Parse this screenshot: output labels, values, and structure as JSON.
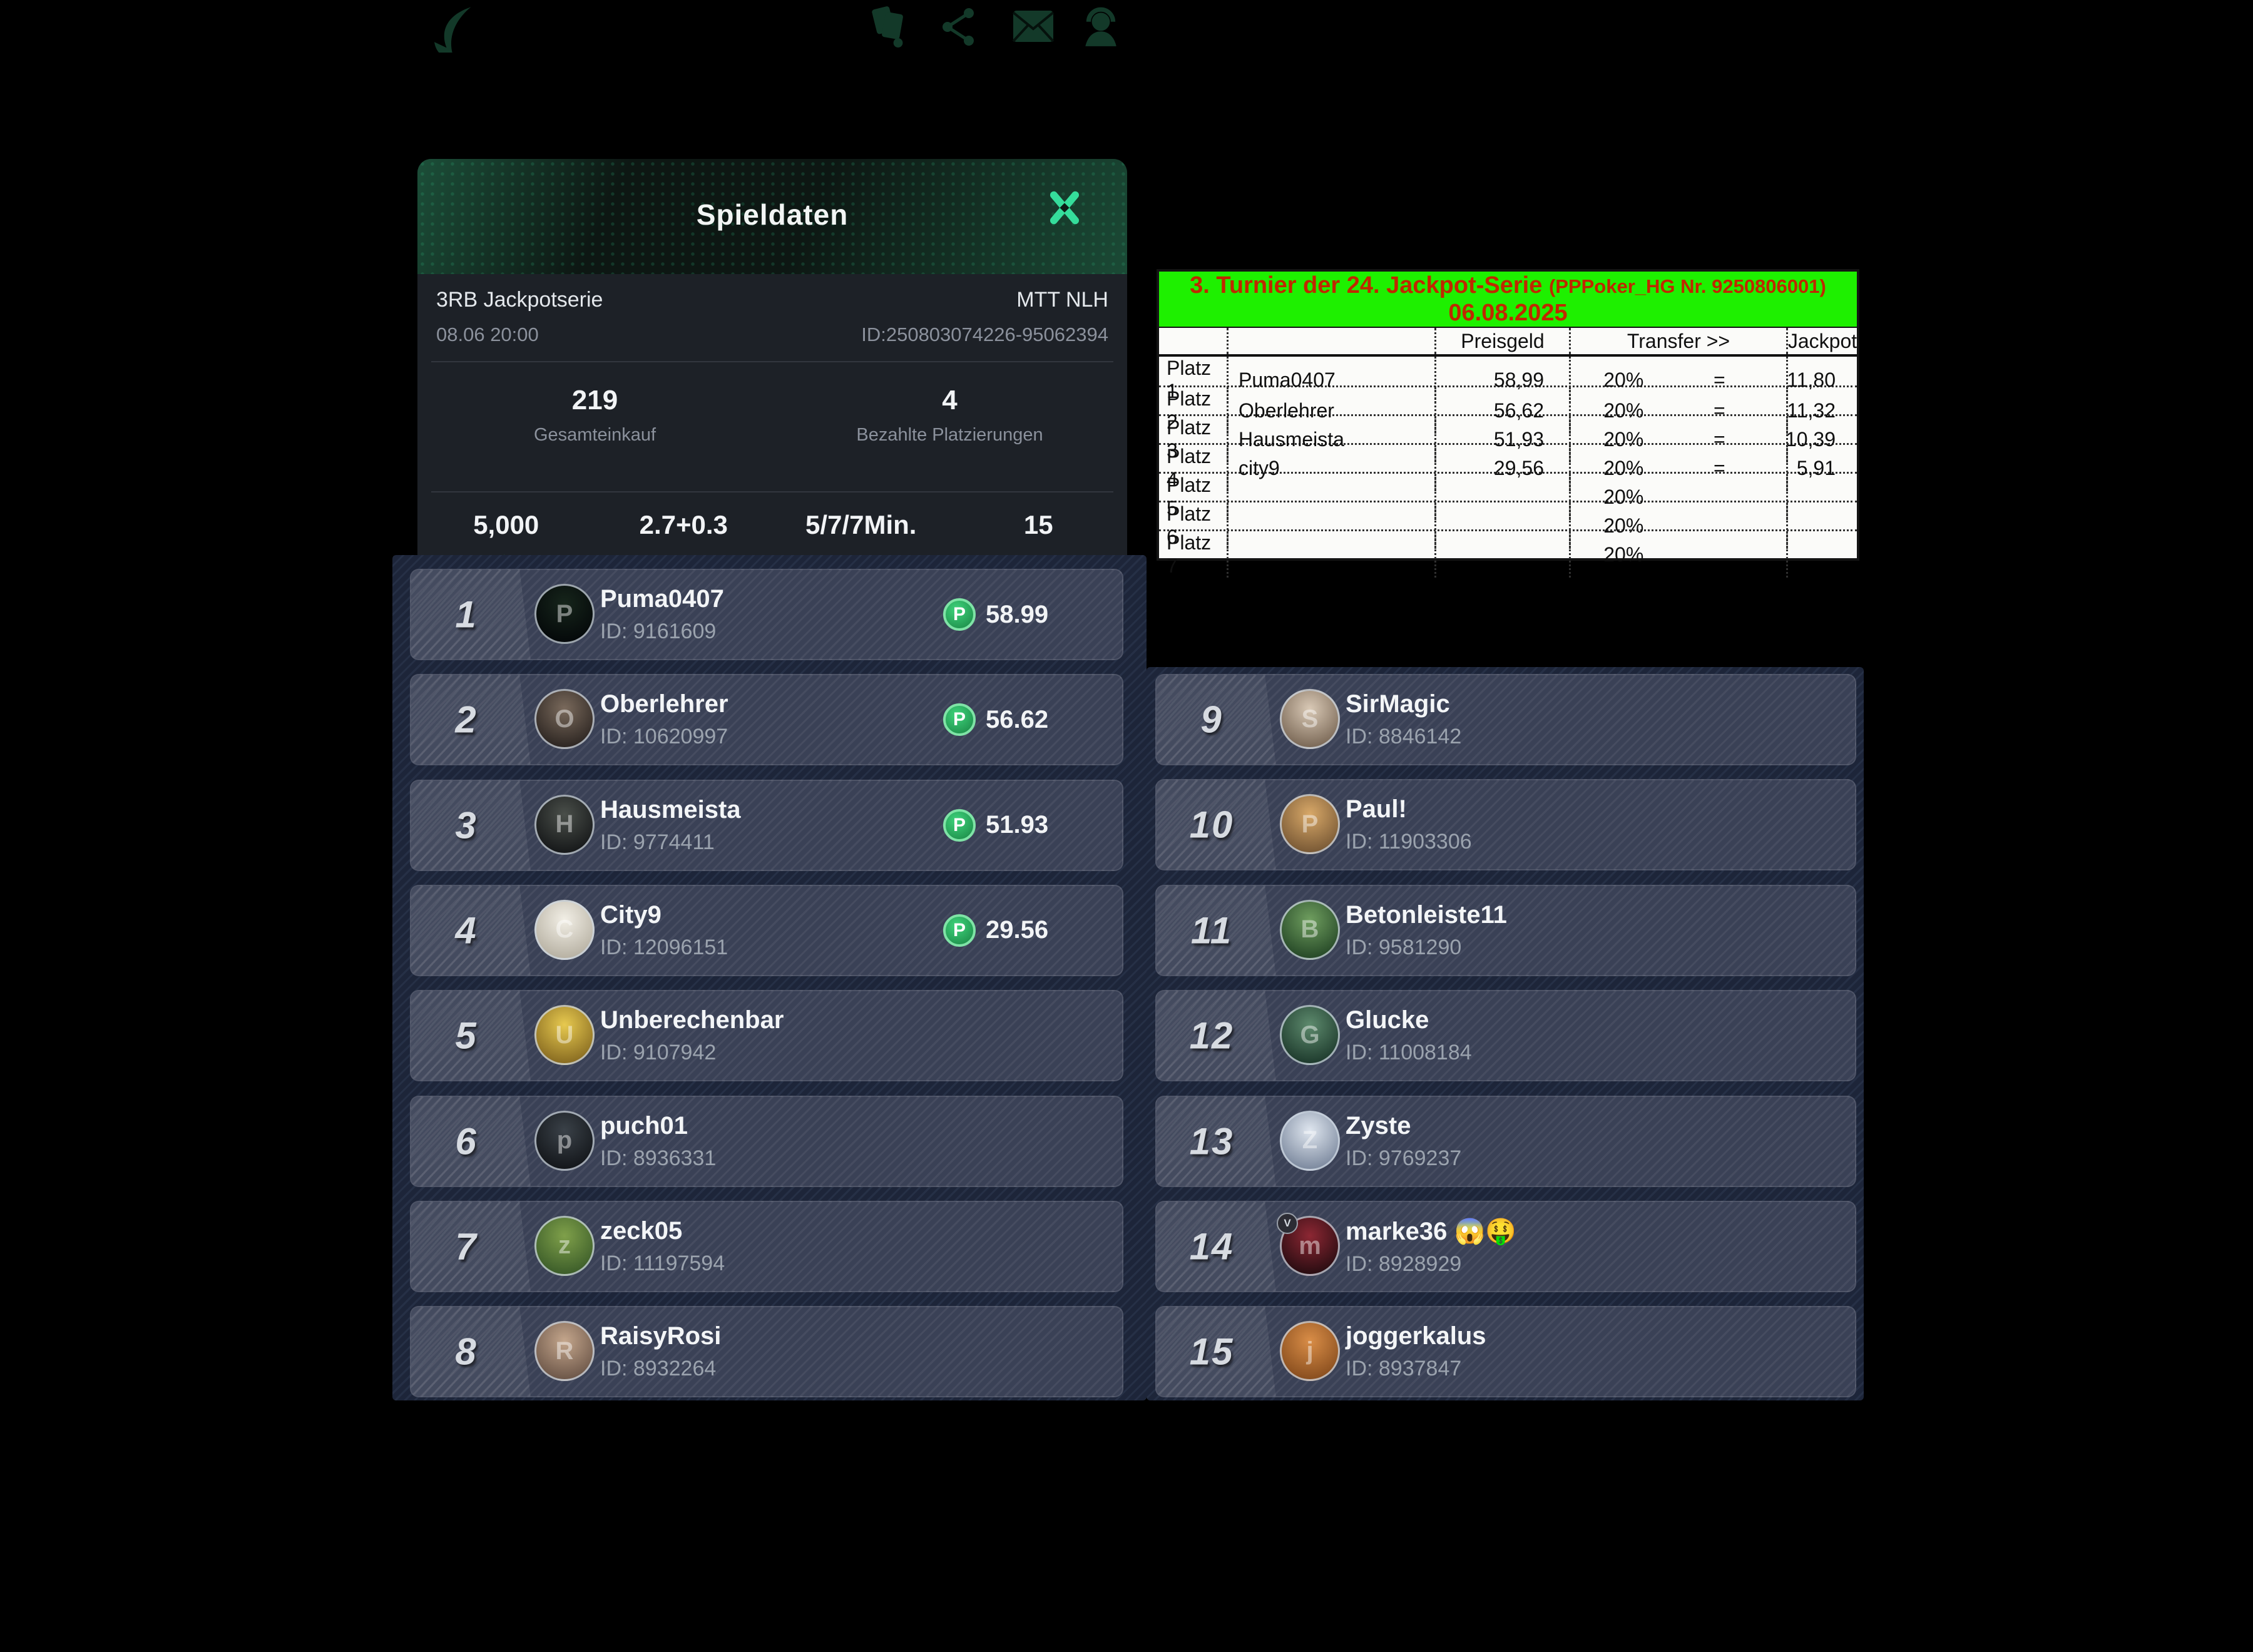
{
  "topbar": {
    "icons": [
      "back-icon",
      "cards-icon",
      "share-icon",
      "mail-icon",
      "support-icon"
    ]
  },
  "dialog": {
    "title": "Spieldaten",
    "series": "3RB Jackpotserie",
    "datetime": "08.06 20:00",
    "game_type": "MTT NLH",
    "game_id": "ID:250803074226-95062394",
    "buyin_total": {
      "value": "219",
      "label": "Gesamteinkauf"
    },
    "paid_places": {
      "value": "4",
      "label": "Bezahlte Platzierungen"
    },
    "stats": [
      {
        "value": "5,000",
        "icon": "chip-icon"
      },
      {
        "value": "2.7+0.3",
        "icon": "dollar-icon"
      },
      {
        "value": "5/7/7Min.",
        "icon": "clock-icon"
      },
      {
        "value": "15",
        "icon": "players-icon"
      }
    ]
  },
  "payout_table": {
    "title": "3. Turnier der 24. Jackpot-Serie",
    "title_note": "(PPPoker_HG Nr. 9250806001)",
    "date": "06.08.2025",
    "col_headers": [
      "Preisgeld",
      "Transfer >>",
      "Jackpot"
    ],
    "rows": [
      {
        "platz": "Platz 1",
        "name": "Puma0407",
        "preisgeld": "58,99",
        "transfer": "20%",
        "eq": "=",
        "jackpot": "11,80"
      },
      {
        "platz": "Platz 2",
        "name": "Oberlehrer",
        "preisgeld": "56,62",
        "transfer": "20%",
        "eq": "=",
        "jackpot": "11,32"
      },
      {
        "platz": "Platz 3",
        "name": "Hausmeista",
        "preisgeld": "51,93",
        "transfer": "20%",
        "eq": "=",
        "jackpot": "10,39"
      },
      {
        "platz": "Platz 4",
        "name": "city9",
        "preisgeld": "29,56",
        "transfer": "20%",
        "eq": "=",
        "jackpot": "5,91"
      },
      {
        "platz": "Platz 5",
        "name": "",
        "preisgeld": "",
        "transfer": "20%",
        "eq": "",
        "jackpot": ""
      },
      {
        "platz": "Platz 6",
        "name": "",
        "preisgeld": "",
        "transfer": "20%",
        "eq": "",
        "jackpot": ""
      },
      {
        "platz": "Platz 7",
        "name": "",
        "preisgeld": "",
        "transfer": "20%",
        "eq": "",
        "jackpot": ""
      }
    ]
  },
  "leaderboard": {
    "left": [
      {
        "rank": "1",
        "tier": "gold",
        "name": "Puma0407",
        "id": "ID: 9161609",
        "amount": "58.99",
        "avatar_letter": "P",
        "avatar_top": "#16251b",
        "avatar_bottom": "#05090a",
        "badge": ""
      },
      {
        "rank": "2",
        "tier": "silver",
        "name": "Oberlehrer",
        "id": "ID: 10620997",
        "amount": "56.62",
        "avatar_letter": "O",
        "avatar_top": "#7a6a5c",
        "avatar_bottom": "#2e2723",
        "badge": ""
      },
      {
        "rank": "3",
        "tier": "bronze",
        "name": "Hausmeista",
        "id": "ID: 9774411",
        "amount": "51.93",
        "avatar_letter": "H",
        "avatar_top": "#4a4f4a",
        "avatar_bottom": "#17191a",
        "badge": ""
      },
      {
        "rank": "4",
        "tier": "plain",
        "name": "City9",
        "id": "ID: 12096151",
        "amount": "29.56",
        "avatar_letter": "C",
        "avatar_top": "#f2efe6",
        "avatar_bottom": "#b8b2a4",
        "badge": ""
      },
      {
        "rank": "5",
        "tier": "plain",
        "name": "Unberechenbar",
        "id": "ID: 9107942",
        "amount": "",
        "avatar_letter": "U",
        "avatar_top": "#e7c94f",
        "avatar_bottom": "#8a6d22",
        "badge": ""
      },
      {
        "rank": "6",
        "tier": "plain",
        "name": "puch01",
        "id": "ID: 8936331",
        "amount": "",
        "avatar_letter": "p",
        "avatar_top": "#3a4148",
        "avatar_bottom": "#14171b",
        "badge": ""
      },
      {
        "rank": "7",
        "tier": "plain",
        "name": "zeck05",
        "id": "ID: 11197594",
        "amount": "",
        "avatar_letter": "z",
        "avatar_top": "#7fa04a",
        "avatar_bottom": "#3d5e2a",
        "badge": ""
      },
      {
        "rank": "8",
        "tier": "plain",
        "name": "RaisyRosi",
        "id": "ID: 8932264",
        "amount": "",
        "avatar_letter": "R",
        "avatar_top": "#c4a68c",
        "avatar_bottom": "#6e584a",
        "badge": ""
      }
    ],
    "right": [
      {
        "rank": "9",
        "tier": "plain",
        "name": "SirMagic",
        "id": "ID: 8846142",
        "amount": "",
        "avatar_letter": "S",
        "avatar_top": "#d9c9b6",
        "avatar_bottom": "#7c6a58",
        "badge": ""
      },
      {
        "rank": "10",
        "tier": "plain",
        "name": "Paul!",
        "id": "ID: 11903306",
        "amount": "",
        "avatar_letter": "P",
        "avatar_top": "#d8a868",
        "avatar_bottom": "#7a5a36",
        "badge": ""
      },
      {
        "rank": "11",
        "tier": "plain",
        "name": "Betonleiste11",
        "id": "ID: 9581290",
        "amount": "",
        "avatar_letter": "B",
        "avatar_top": "#6f9e5f",
        "avatar_bottom": "#274a28",
        "badge": ""
      },
      {
        "rank": "12",
        "tier": "plain",
        "name": "Glucke",
        "id": "ID: 11008184",
        "amount": "",
        "avatar_letter": "G",
        "avatar_top": "#5d8a6d",
        "avatar_bottom": "#1f3c2e",
        "badge": ""
      },
      {
        "rank": "13",
        "tier": "plain",
        "name": "Zyste",
        "id": "ID: 9769237",
        "amount": "",
        "avatar_letter": "Z",
        "avatar_top": "#dfe6ef",
        "avatar_bottom": "#7e8ba0",
        "badge": ""
      },
      {
        "rank": "14",
        "tier": "plain",
        "name": "marke36 😱🤑",
        "id": "ID: 8928929",
        "amount": "",
        "avatar_letter": "m",
        "avatar_top": "#8c2733",
        "avatar_bottom": "#2a0d12",
        "badge": "V"
      },
      {
        "rank": "15",
        "tier": "plain",
        "name": "joggerkalus",
        "id": "ID: 8937847",
        "amount": "",
        "avatar_letter": "j",
        "avatar_top": "#d98d47",
        "avatar_bottom": "#8a4f1f",
        "badge": ""
      }
    ]
  },
  "colors": {
    "accent_green": "#35dd9b",
    "icon_green": "#27c981",
    "coin_green": "#2eb566",
    "table_green": "#1ef000",
    "table_red": "#c02800",
    "gold": "#f3cf5c",
    "silver": "#e8eef6",
    "bronze": "#e0985f"
  }
}
